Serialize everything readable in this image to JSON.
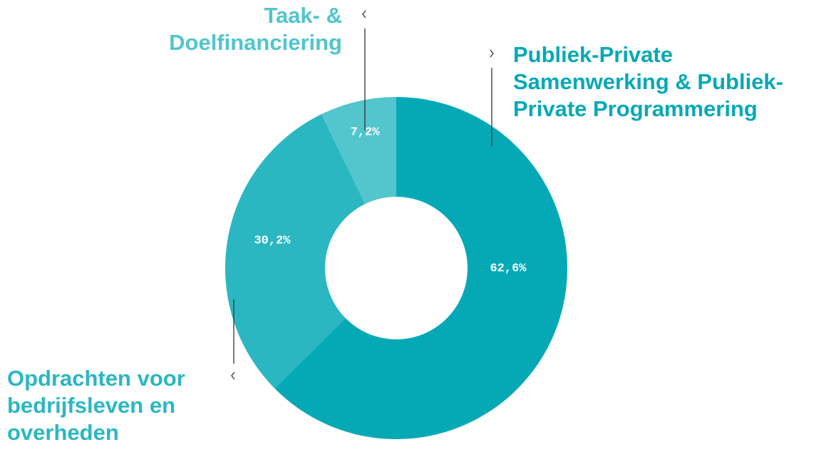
{
  "chart_data": {
    "type": "donut",
    "categories": [
      "Publiek-Private Samenwerking & Publiek-Private Programmering",
      "Opdrachten voor bedrijfsleven en overheden",
      "Taak- & Doelfinanciering"
    ],
    "values": [
      62.6,
      30.2,
      7.2
    ],
    "value_labels": [
      "62,6%",
      "30,2%",
      "7,2%"
    ],
    "colors": [
      "#05a9b6",
      "#2bb7c2",
      "#52c5cd"
    ]
  }
}
